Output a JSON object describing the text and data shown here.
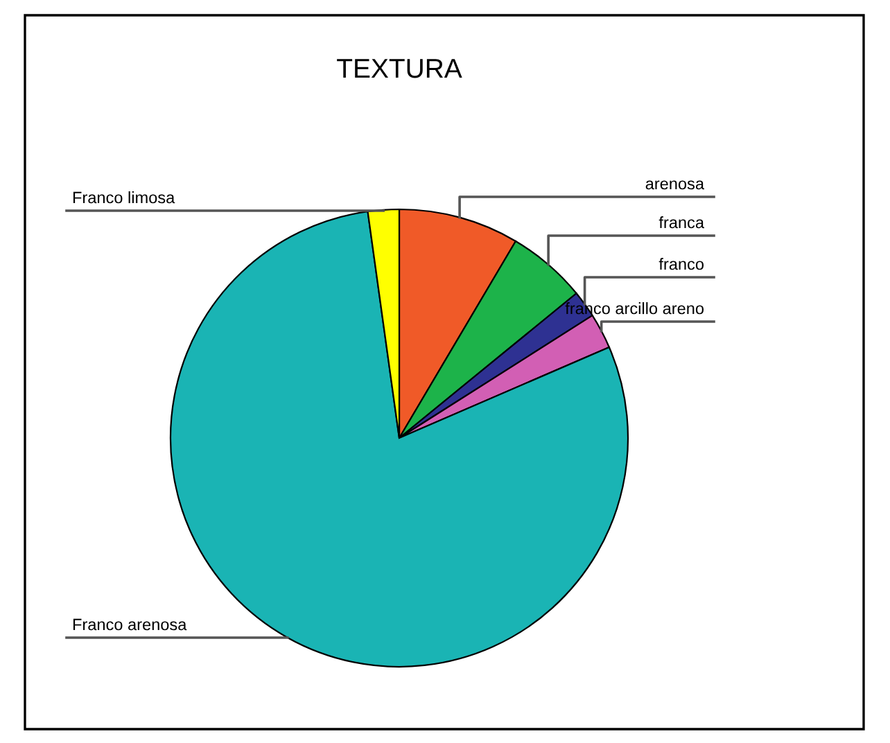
{
  "chart_data": {
    "type": "pie",
    "title": "TEXTURA",
    "categories": [
      "arenosa",
      "franca",
      "franco",
      "franco arcillo areno",
      "Franco arenosa",
      "Franco limosa"
    ],
    "values": [
      8.5,
      5.6,
      1.9,
      2.5,
      79.3,
      2.2
    ],
    "colors": [
      "#f05a28",
      "#1db34a",
      "#2e3192",
      "#d25fb4",
      "#1ab4b4",
      "#ffff00"
    ],
    "legend": false
  }
}
